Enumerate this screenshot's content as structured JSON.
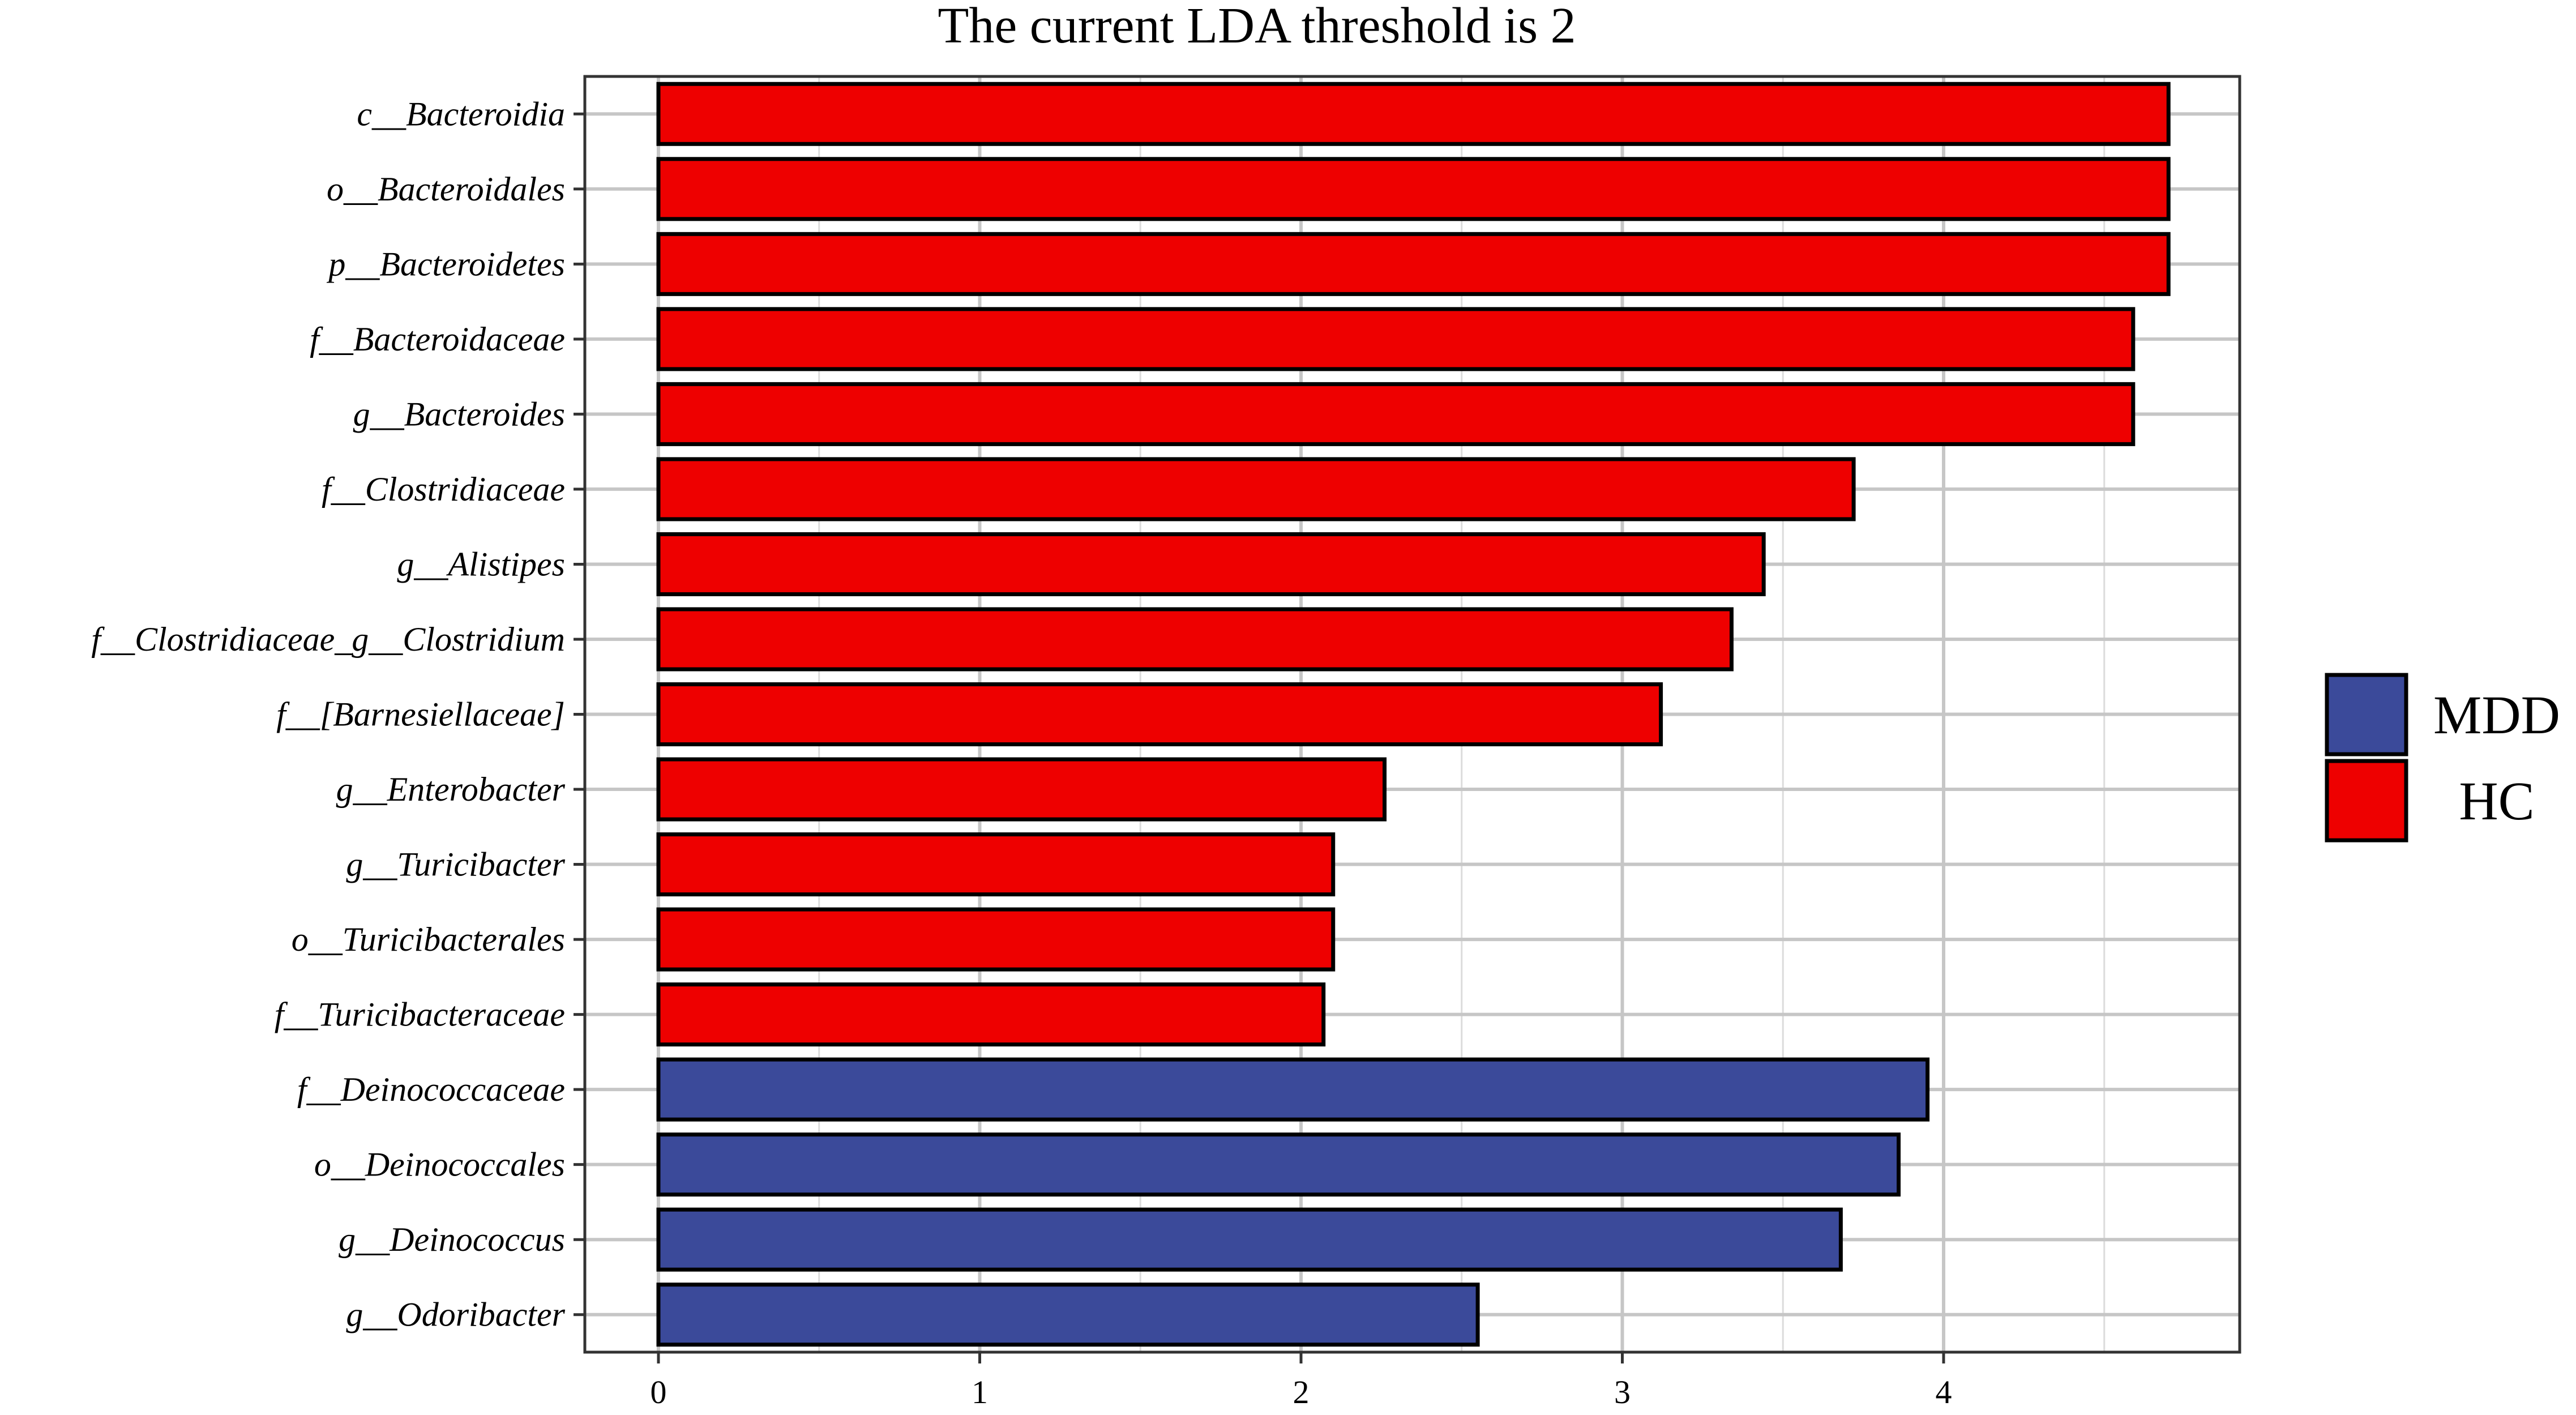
{
  "chart_data": {
    "type": "bar",
    "orientation": "horizontal",
    "title": "The current LDA threshold is 2",
    "xlabel": "",
    "ylabel": "",
    "xlim": [
      -0.23,
      4.9
    ],
    "xticks": [
      0,
      1,
      2,
      3,
      4
    ],
    "grid": true,
    "legend_position": "right",
    "categories": [
      "c__Bacteroidia",
      "o__Bacteroidales",
      "p__Bacteroidetes",
      "f__Bacteroidaceae",
      "g__Bacteroides",
      "f__Clostridiaceae",
      "g__Alistipes",
      "f__Clostridiaceae_g__Clostridium",
      "f__[Barnesiellaceae]",
      "g__Enterobacter",
      "g__Turicibacter",
      "o__Turicibacterales",
      "f__Turicibacteraceae",
      "f__Deinococcaceae",
      "o__Deinococcales",
      "g__Deinococcus",
      "g__Odoribacter"
    ],
    "values": [
      4.7,
      4.7,
      4.7,
      4.59,
      4.59,
      3.72,
      3.44,
      3.34,
      3.12,
      2.26,
      2.1,
      2.1,
      2.07,
      3.95,
      3.86,
      3.68,
      2.55
    ],
    "groups": [
      "HC",
      "HC",
      "HC",
      "HC",
      "HC",
      "HC",
      "HC",
      "HC",
      "HC",
      "HC",
      "HC",
      "HC",
      "HC",
      "MDD",
      "MDD",
      "MDD",
      "MDD"
    ],
    "legend": [
      {
        "name": "MDD",
        "color": "#3B4A9A"
      },
      {
        "name": "HC",
        "color": "#EE0000"
      }
    ]
  }
}
